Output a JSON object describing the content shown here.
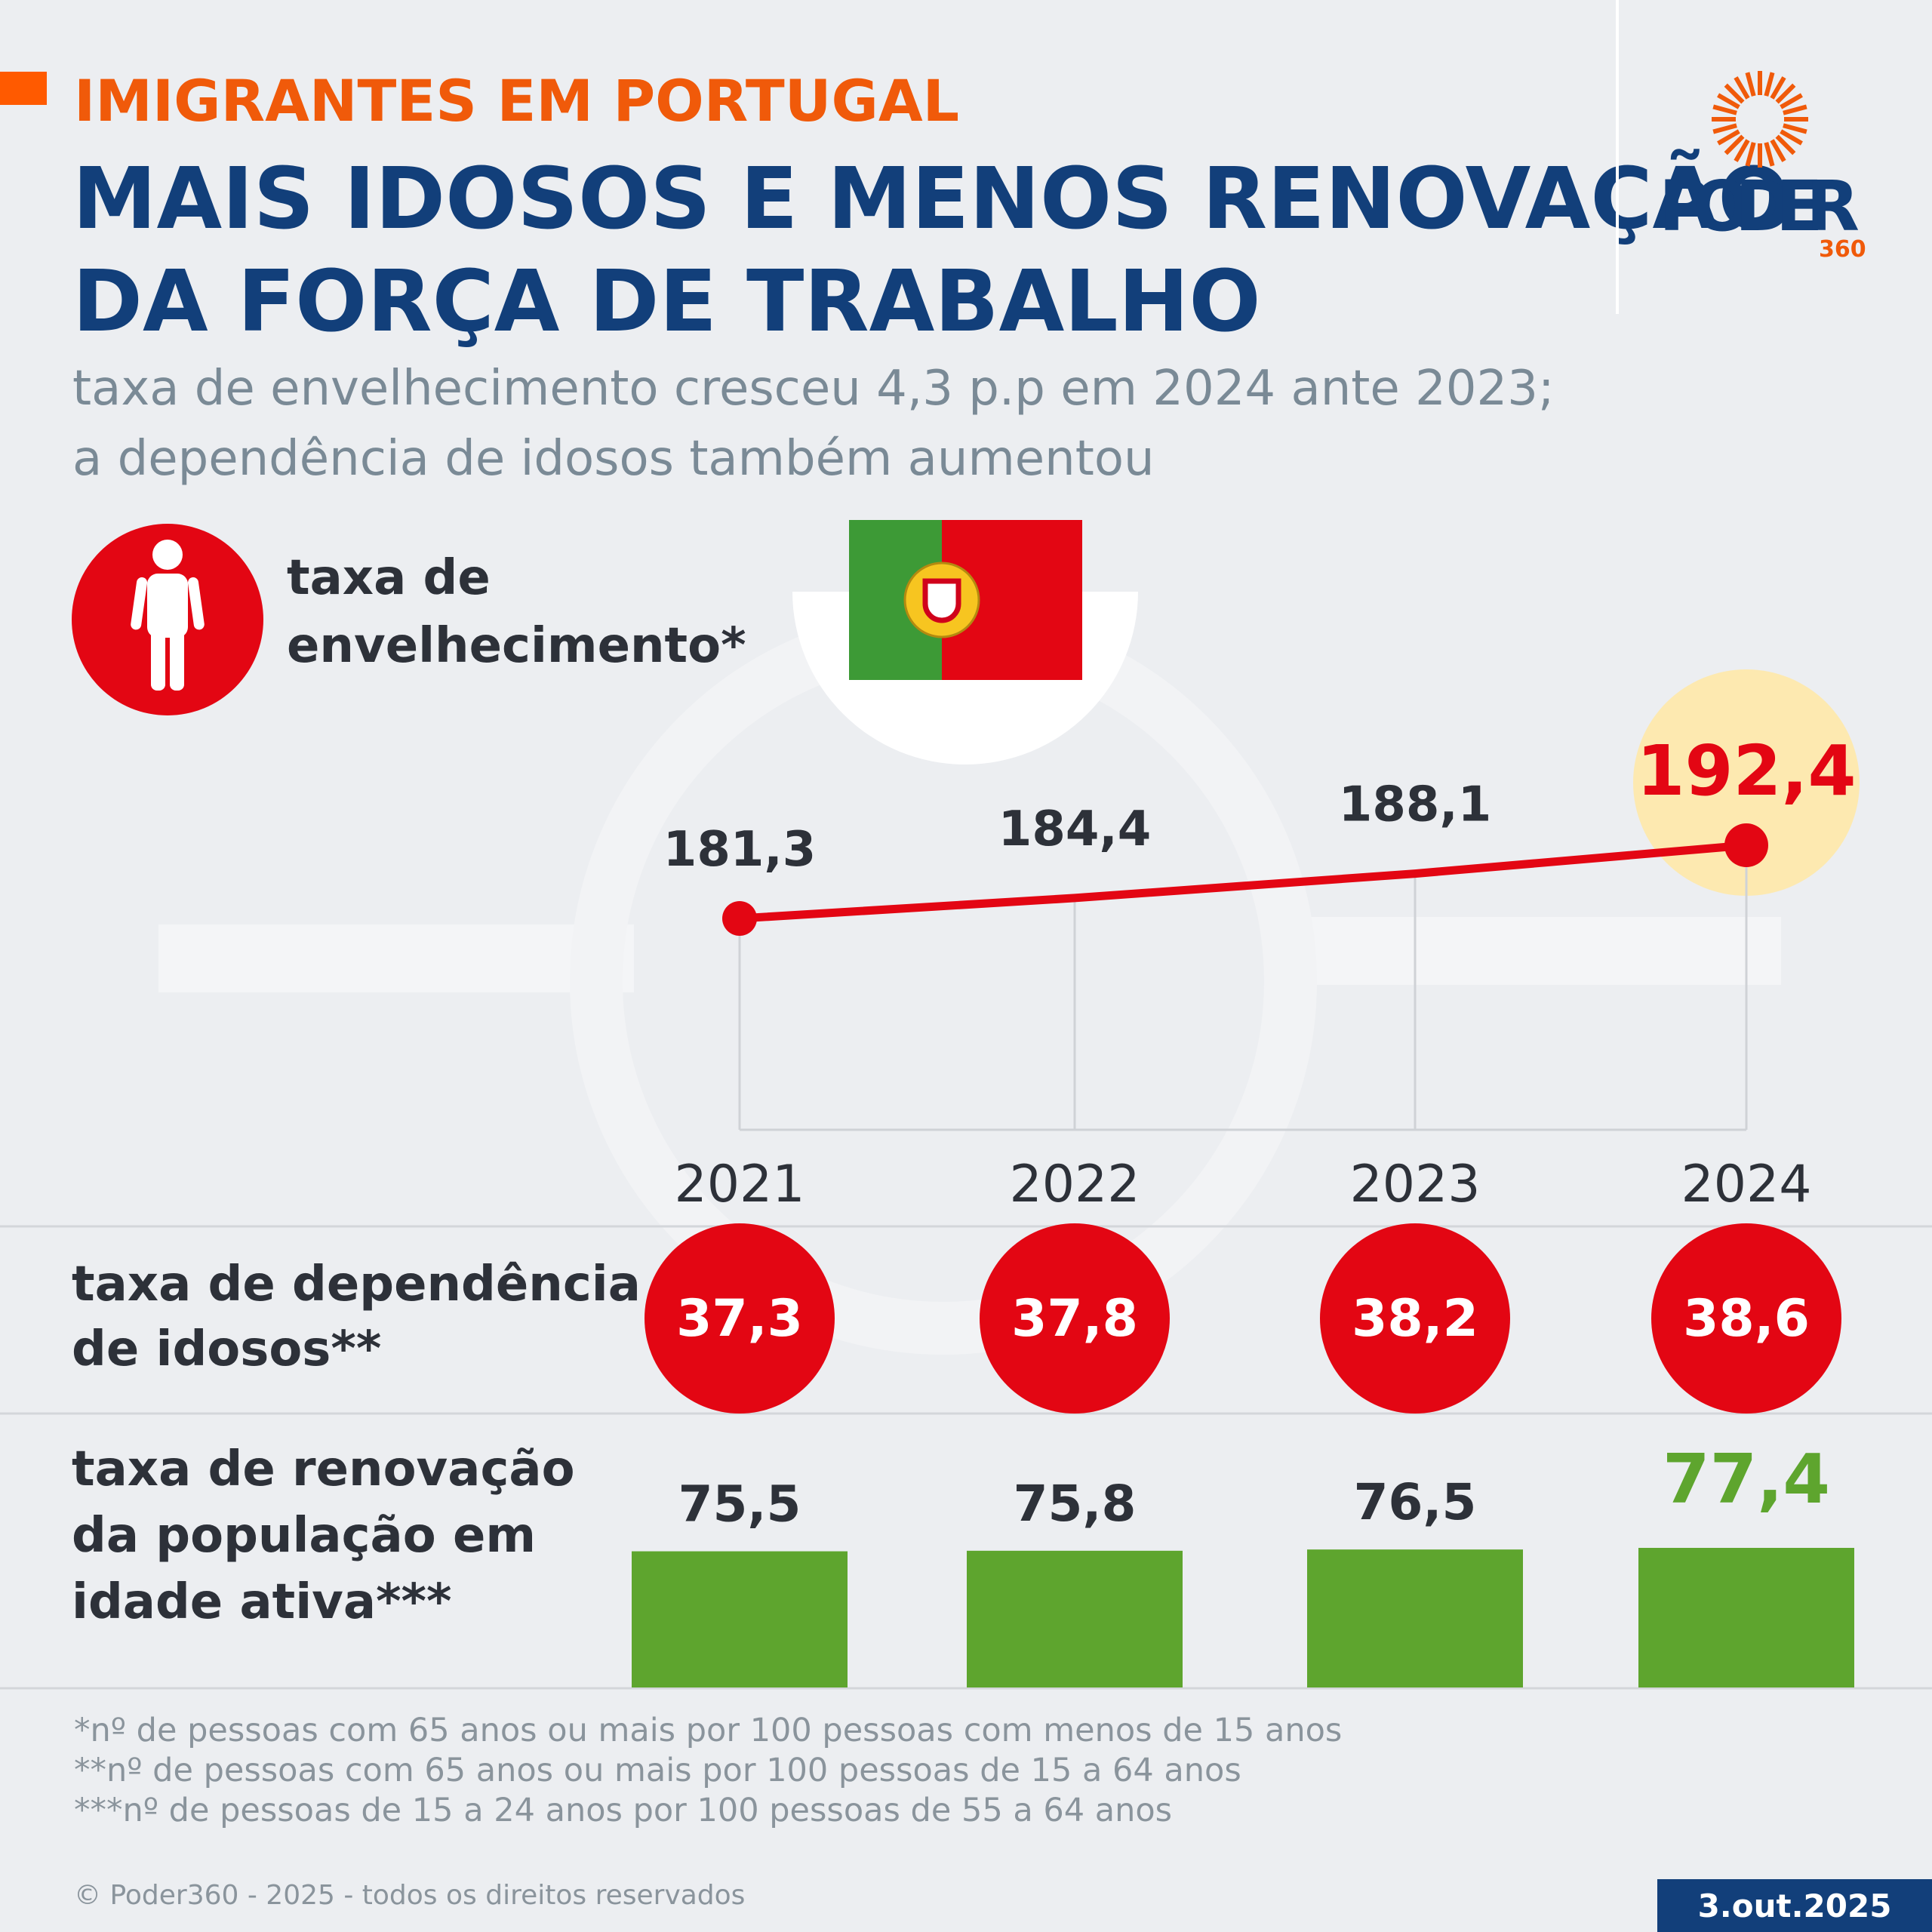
{
  "header": {
    "kicker": "IMIGRANTES EM PORTUGAL",
    "title": [
      "MAIS IDOSOS E MENOS RENOVAÇÃO",
      "DA FORÇA DE TRABALHO"
    ],
    "subtitle": [
      "taxa de envelhecimento cresceu 4,3 p.p em 2024 ante 2023;",
      "a dependência de idosos também aumentou"
    ]
  },
  "logo": {
    "name": "PODER",
    "number": "360"
  },
  "chart_data": [
    {
      "type": "line",
      "title": [
        "taxa de",
        "envelhecimento*"
      ],
      "categories": [
        "2021",
        "2022",
        "2023",
        "2024"
      ],
      "values": [
        181.3,
        184.4,
        188.1,
        192.4
      ],
      "value_labels": [
        "181,3",
        "184,4",
        "188,1",
        "192,4"
      ],
      "color": "#e30613"
    },
    {
      "type": "circle",
      "title": [
        "taxa de dependência",
        "de idosos**"
      ],
      "values": [
        37.3,
        37.8,
        38.2,
        38.6
      ],
      "value_labels": [
        "37,3",
        "37,8",
        "38,2",
        "38,6"
      ],
      "color": "#e30613"
    },
    {
      "type": "bar",
      "title": [
        "taxa de renovação",
        "da população em",
        "idade ativa***"
      ],
      "values": [
        75.5,
        75.8,
        76.5,
        77.4
      ],
      "value_labels": [
        "75,5",
        "75,8",
        "76,5",
        "77,4"
      ],
      "color": "#5ea52e"
    }
  ],
  "footnotes": [
    "*nº de pessoas com 65 anos ou mais por 100 pessoas com menos de 15 anos",
    "**nº de pessoas com 65 anos ou mais por 100 pessoas de 15 a 64 anos",
    "***nº de pessoas de 15 a 24 anos por 100 pessoas de 55 a 64 anos"
  ],
  "copyright": "© Poder360 - 2025 - todos os direitos reservados",
  "date": "3.out.2025"
}
